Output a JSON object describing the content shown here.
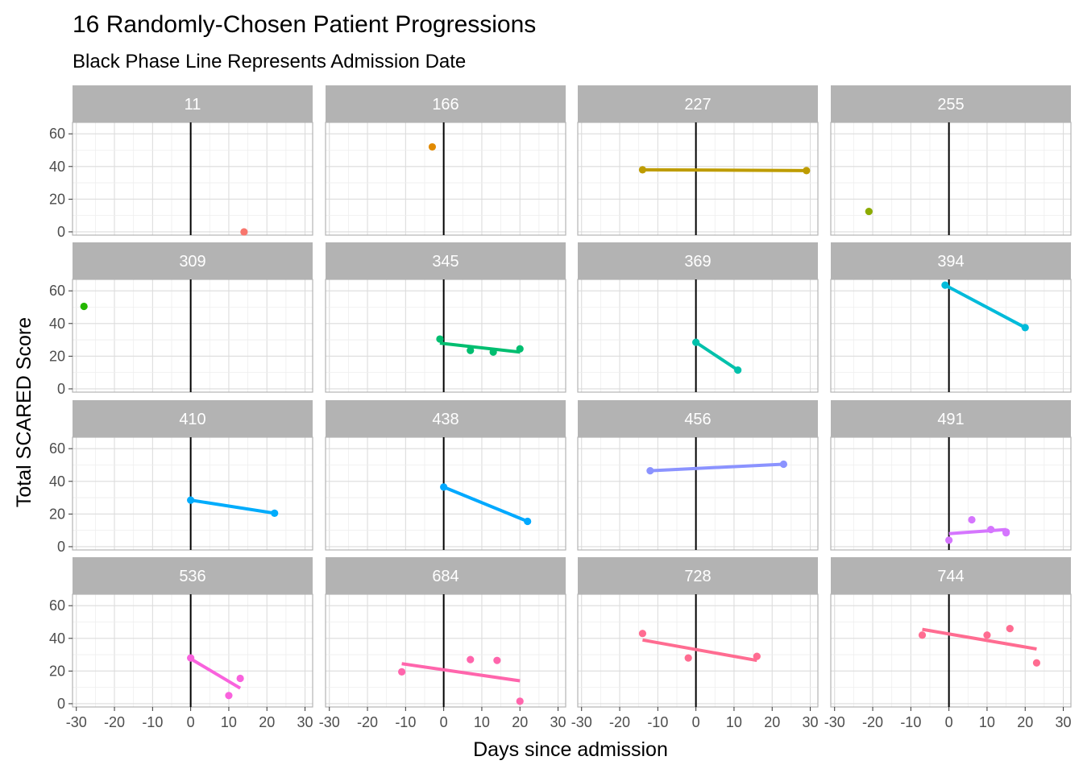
{
  "chart_data": {
    "type": "scatter",
    "title": "16 Randomly-Chosen Patient Progressions",
    "subtitle": "Black Phase Line Represents Admission Date",
    "xlabel": "Days since admission",
    "ylabel": "Total SCARED Score",
    "xlim": [
      -31,
      32
    ],
    "ylim": [
      -2,
      67
    ],
    "x_ticks": [
      -30,
      -20,
      -10,
      0,
      10,
      20,
      30
    ],
    "y_ticks": [
      0,
      20,
      40,
      60
    ],
    "phase_line_x": 0,
    "grid": true,
    "facets": [
      {
        "label": "11",
        "color": "#F8766D",
        "points": [
          [
            14,
            0
          ]
        ],
        "fit": null
      },
      {
        "label": "166",
        "color": "#E18A00",
        "points": [
          [
            -3,
            52
          ]
        ],
        "fit": null
      },
      {
        "label": "227",
        "color": "#BE9C00",
        "points": [
          [
            -14,
            38
          ],
          [
            29,
            37.5
          ]
        ],
        "fit": [
          [
            -14,
            38
          ],
          [
            29,
            37.5
          ]
        ]
      },
      {
        "label": "255",
        "color": "#8CAB00",
        "points": [
          [
            -21,
            12.5
          ]
        ],
        "fit": null
      },
      {
        "label": "309",
        "color": "#24B700",
        "points": [
          [
            -28,
            50.5
          ]
        ],
        "fit": null
      },
      {
        "label": "345",
        "color": "#00BE70",
        "points": [
          [
            -1,
            30.5
          ],
          [
            7,
            23.5
          ],
          [
            13,
            22.5
          ],
          [
            20,
            24.5
          ]
        ],
        "fit": [
          [
            -1,
            28
          ],
          [
            20,
            22.5
          ]
        ]
      },
      {
        "label": "369",
        "color": "#00C1AB",
        "points": [
          [
            0,
            28.5
          ],
          [
            11,
            11.5
          ]
        ],
        "fit": [
          [
            0,
            28.5
          ],
          [
            11,
            11.5
          ]
        ]
      },
      {
        "label": "394",
        "color": "#00BBDA",
        "points": [
          [
            -1,
            63.5
          ],
          [
            20,
            37.5
          ]
        ],
        "fit": [
          [
            -1,
            63.5
          ],
          [
            20,
            37.5
          ]
        ]
      },
      {
        "label": "410",
        "color": "#00ACFC",
        "points": [
          [
            0,
            28.5
          ],
          [
            22,
            20.5
          ]
        ],
        "fit": [
          [
            0,
            28.5
          ],
          [
            22,
            20.5
          ]
        ]
      },
      {
        "label": "438",
        "color": "#00A9FF",
        "points": [
          [
            0,
            36.5
          ],
          [
            22,
            15.5
          ]
        ],
        "fit": [
          [
            0,
            36.5
          ],
          [
            22,
            15.5
          ]
        ]
      },
      {
        "label": "456",
        "color": "#8B93FF",
        "points": [
          [
            -12,
            46.5
          ],
          [
            23,
            50.5
          ]
        ],
        "fit": [
          [
            -12,
            46.5
          ],
          [
            23,
            50.5
          ]
        ]
      },
      {
        "label": "491",
        "color": "#D575FE",
        "points": [
          [
            0,
            4
          ],
          [
            6,
            16.5
          ],
          [
            11,
            10.5
          ],
          [
            15,
            8.5
          ],
          [
            15,
            9
          ]
        ],
        "fit": [
          [
            0,
            8
          ],
          [
            15,
            10.5
          ]
        ]
      },
      {
        "label": "536",
        "color": "#F962DD",
        "points": [
          [
            0,
            28
          ],
          [
            10,
            5
          ],
          [
            13,
            15.5
          ]
        ],
        "fit": [
          [
            0,
            27.5
          ],
          [
            13,
            9.5
          ]
        ]
      },
      {
        "label": "684",
        "color": "#FF65AC",
        "points": [
          [
            -11,
            19.5
          ],
          [
            7,
            27
          ],
          [
            14,
            26.5
          ],
          [
            20,
            1.5
          ]
        ],
        "fit": [
          [
            -11,
            24.5
          ],
          [
            20,
            14
          ]
        ]
      },
      {
        "label": "728",
        "color": "#FF6C91",
        "points": [
          [
            -14,
            43
          ],
          [
            -2,
            28
          ],
          [
            16,
            29
          ]
        ],
        "fit": [
          [
            -14,
            39
          ],
          [
            16,
            26.5
          ]
        ]
      },
      {
        "label": "744",
        "color": "#FF6C91",
        "points": [
          [
            -7,
            42
          ],
          [
            10,
            42
          ],
          [
            16,
            46
          ],
          [
            23,
            25
          ]
        ],
        "fit": [
          [
            -7,
            45.5
          ],
          [
            23,
            33.5
          ]
        ]
      }
    ]
  }
}
